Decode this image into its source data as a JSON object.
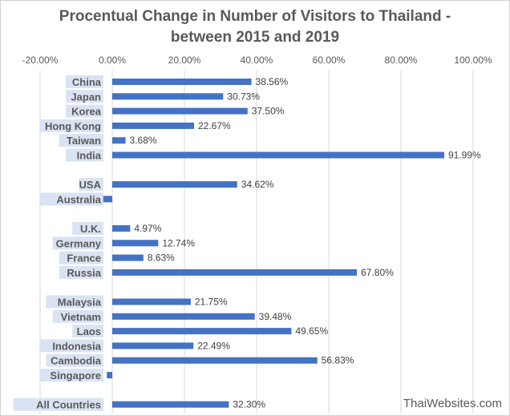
{
  "title_line1": "Procentual Change in Number of Visitors to Thailand -",
  "title_line2": "between 2015 and 2019",
  "watermark": "ThaiWebsites.com",
  "colors": {
    "bar": "#4472c4",
    "label_bg": "#dae3f3",
    "grid": "#d9d9d9",
    "text": "#595959"
  },
  "chart_data": {
    "type": "bar",
    "orientation": "horizontal",
    "title": "Procentual Change in Number of Visitors to Thailand - between 2015 and 2019",
    "xlabel": "",
    "ylabel": "",
    "xlim": [
      -20,
      100
    ],
    "x_tick_labels": [
      "-20.00%",
      "0.00%",
      "20.00%",
      "40.00%",
      "60.00%",
      "80.00%",
      "100.00%"
    ],
    "grid": true,
    "categories": [
      "China",
      "Japan",
      "Korea",
      "Hong Kong",
      "Taiwan",
      "India",
      "",
      "USA",
      "Australia",
      "",
      "U.K.",
      "Germany",
      "France",
      "Russia",
      "",
      "Malaysia",
      "Vietnam",
      "Laos",
      "Indonesia",
      "Cambodia",
      "Singapore",
      "",
      "All Countries"
    ],
    "values": [
      38.56,
      30.73,
      37.5,
      22.67,
      3.68,
      91.99,
      null,
      34.62,
      -2.5,
      null,
      4.97,
      12.74,
      8.63,
      67.8,
      null,
      21.75,
      39.48,
      49.65,
      22.49,
      56.83,
      -1.5,
      null,
      32.3
    ],
    "data_labels": [
      "38.56%",
      "30.73%",
      "37.50%",
      "22.67%",
      "3.68%",
      "91.99%",
      "",
      "34.62%",
      "",
      "",
      "4.97%",
      "12.74%",
      "8.63%",
      "67.80%",
      "",
      "21.75%",
      "39.48%",
      "49.65%",
      "22.49%",
      "56.83%",
      "",
      "",
      "32.30%"
    ]
  }
}
